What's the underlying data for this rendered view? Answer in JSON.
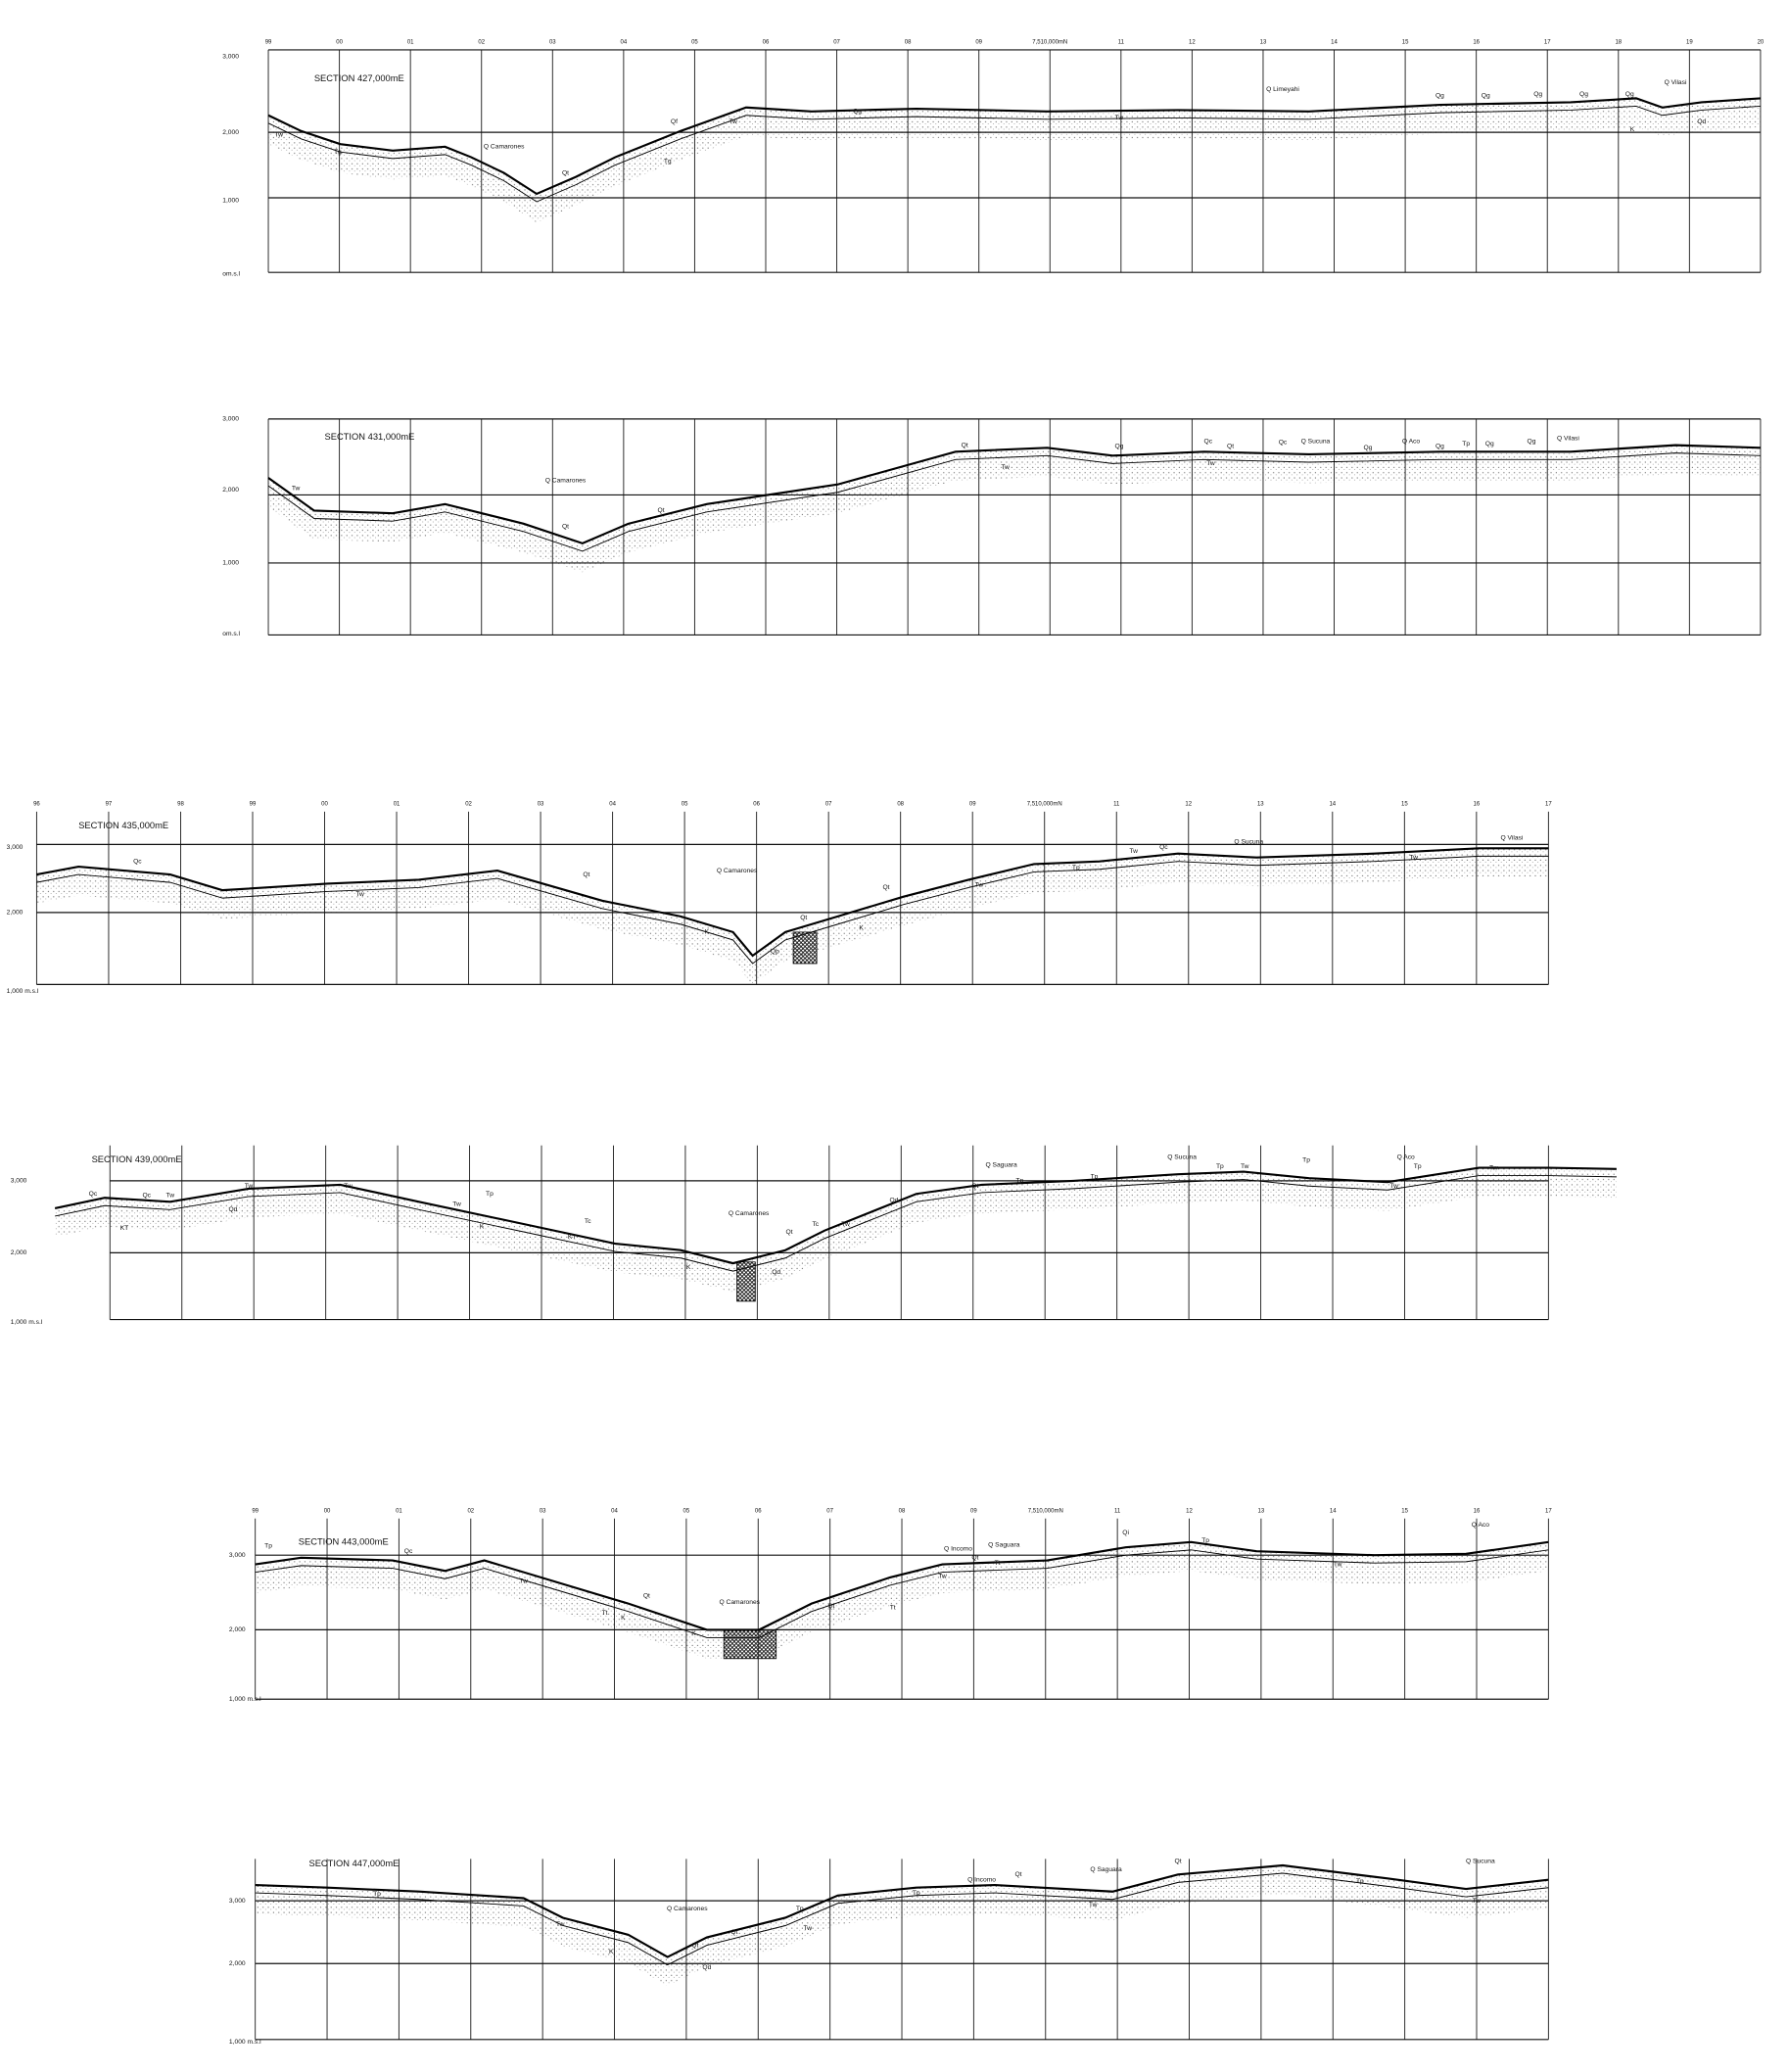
{
  "sections": [
    {
      "title": "SECTION 427,000mE",
      "elevation_labels": [
        "3,000",
        "2,000",
        "1,000",
        "om.s.l"
      ],
      "column_labels": [
        "99",
        "00",
        "01",
        "02",
        "03",
        "04",
        "05",
        "06",
        "07",
        "08",
        "09",
        "7,510,000mN",
        "11",
        "12",
        "13",
        "14",
        "15",
        "16",
        "17",
        "18",
        "19",
        "20"
      ],
      "labels": [
        "Tw",
        "Tg",
        "Q Camarones",
        "Qt",
        "Qf",
        "Tw",
        "Tg",
        "Qg",
        "Tw",
        "Q Limeyahi",
        "Qg",
        "Qg",
        "Qg",
        "Qg",
        "Qg",
        "Q Vilasi",
        "K",
        "Qd"
      ]
    },
    {
      "title": "SECTION 431,000mE",
      "elevation_labels": [
        "3,000",
        "2,000",
        "1,000",
        "om.s.l"
      ],
      "column_labels": [],
      "labels": [
        "Tw",
        "Q Camarones",
        "Qt",
        "Qt",
        "Qt",
        "Tw",
        "Qg",
        "Qc",
        "Qt",
        "Tw",
        "Qc",
        "Q Sucuna",
        "Qg",
        "Q Aco",
        "Qg",
        "Tp",
        "Qg",
        "Qg",
        "Q Vilasi"
      ]
    },
    {
      "title": "SECTION 435,000mE",
      "elevation_labels": [
        "3,000",
        "2,000",
        "1,000 m.s.l"
      ],
      "column_labels": [
        "96",
        "97",
        "98",
        "99",
        "00",
        "01",
        "02",
        "03",
        "04",
        "05",
        "06",
        "07",
        "08",
        "09",
        "7,510,000mN",
        "11",
        "12",
        "13",
        "14",
        "15",
        "16",
        "17"
      ],
      "labels": [
        "Qc",
        "Tw",
        "Qt",
        "Q Camarones",
        "K",
        "Qt",
        "K",
        "Qp",
        "Qt",
        "Tw",
        "Tp",
        "Tw",
        "Qc",
        "Q Sucuna",
        "Tw",
        "Q Vilasi"
      ]
    },
    {
      "title": "SECTION 439,000mE",
      "elevation_labels": [
        "3,000",
        "2,000",
        "1,000 m.s.l"
      ],
      "column_labels": [],
      "labels": [
        "Qc",
        "Qc",
        "Tw",
        "KT",
        "Qd",
        "Tw",
        "Tw",
        "Tw",
        "Tp",
        "K",
        "KT",
        "Tc",
        "Q Camarones",
        "K",
        "Qd",
        "Qt",
        "Tc",
        "Tw",
        "Qd",
        "Qt",
        "Q Saguara",
        "Tp",
        "Tp",
        "Q Sucuna",
        "Tp",
        "Tw",
        "Tp",
        "Q Aco",
        "Tp",
        "Tw",
        "Tw"
      ]
    },
    {
      "title": "SECTION 443,000mE",
      "elevation_labels": [
        "3,000",
        "2,000",
        "1,000 m.s.l"
      ],
      "column_labels": [
        "99",
        "00",
        "01",
        "02",
        "03",
        "04",
        "05",
        "06",
        "07",
        "08",
        "09",
        "7,510,000mN",
        "11",
        "12",
        "13",
        "14",
        "15",
        "16",
        "17"
      ],
      "labels": [
        "Tp",
        "Qc",
        "Tw",
        "Qt",
        "Tt",
        "K",
        "Q Camarones",
        "K",
        "Qt",
        "Tt",
        "Q Incomo",
        "Q Saguara",
        "Qt",
        "Tt",
        "Tw",
        "Qi",
        "Tp",
        "Tw",
        "Q Aco"
      ]
    },
    {
      "title": "SECTION 447,000mE",
      "elevation_labels": [
        "3,000",
        "2,000",
        "1,000 m.s.l"
      ],
      "column_labels": [],
      "labels": [
        "Tp",
        "Tw",
        "K",
        "Q Camarones",
        "Qt",
        "Qt",
        "Qd",
        "Tp",
        "Tw",
        "Tp",
        "Q Incomo",
        "Qt",
        "Q Saguara",
        "Tw",
        "Qt",
        "Tp",
        "Q Sucuna",
        "Tw"
      ]
    }
  ]
}
